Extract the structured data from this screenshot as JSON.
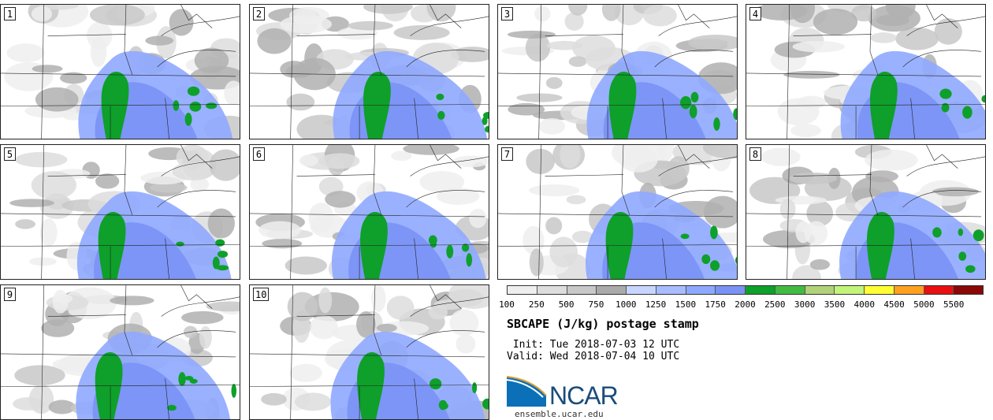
{
  "panels": [
    {
      "label": "1"
    },
    {
      "label": "2"
    },
    {
      "label": "3"
    },
    {
      "label": "4"
    },
    {
      "label": "5"
    },
    {
      "label": "6"
    },
    {
      "label": "7"
    },
    {
      "label": "8"
    },
    {
      "label": "9"
    },
    {
      "label": "10"
    }
  ],
  "colorbar": {
    "labels": [
      "100",
      "250",
      "500",
      "750",
      "1000",
      "1250",
      "1500",
      "1750",
      "2000",
      "2500",
      "3000",
      "3500",
      "4000",
      "4500",
      "5000",
      "5500"
    ],
    "colors": [
      "#eeeeee",
      "#dddddd",
      "#c8c8c8",
      "#aaaaaa",
      "#c8d6ff",
      "#a8bcff",
      "#8fa8ff",
      "#7a92f5",
      "#0ea02a",
      "#41bb41",
      "#b2d27a",
      "#c2f47a",
      "#ffff33",
      "#ffa020",
      "#e81010",
      "#8a0808"
    ]
  },
  "title": "SBCAPE (J/kg) postage stamp",
  "init": " Init: Tue 2018-07-03 12 UTC",
  "valid": "Valid: Wed 2018-07-04 10 UTC",
  "logo": {
    "text": "NCAR",
    "url": "ensemble.ucar.edu"
  }
}
